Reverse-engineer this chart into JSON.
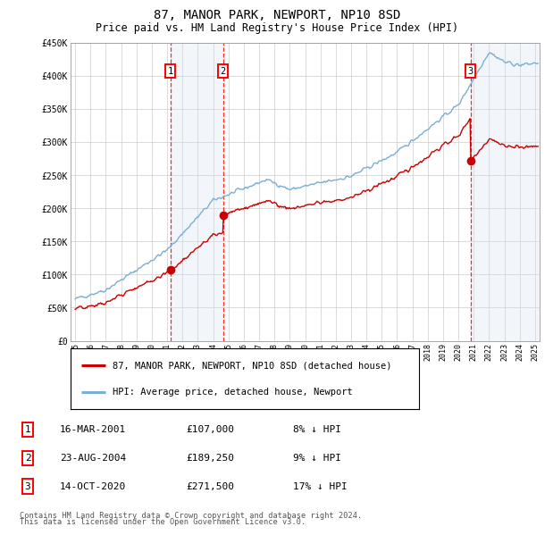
{
  "title": "87, MANOR PARK, NEWPORT, NP10 8SD",
  "subtitle": "Price paid vs. HM Land Registry's House Price Index (HPI)",
  "ylim": [
    0,
    450000
  ],
  "yticks": [
    0,
    50000,
    100000,
    150000,
    200000,
    250000,
    300000,
    350000,
    400000,
    450000
  ],
  "ytick_labels": [
    "£0",
    "£50K",
    "£100K",
    "£150K",
    "£200K",
    "£250K",
    "£300K",
    "£350K",
    "£400K",
    "£450K"
  ],
  "hpi_color": "#7bafd4",
  "price_color": "#cc0000",
  "background_color": "#ffffff",
  "grid_color": "#cccccc",
  "sale_shade_color": "#d6e4f0",
  "transactions": [
    {
      "label": "1",
      "date": "16-MAR-2001",
      "price": 107000,
      "hpi_pct": "8% ↓ HPI",
      "x": 2001.21
    },
    {
      "label": "2",
      "date": "23-AUG-2004",
      "price": 189250,
      "hpi_pct": "9% ↓ HPI",
      "x": 2004.65
    },
    {
      "label": "3",
      "date": "14-OCT-2020",
      "price": 271500,
      "hpi_pct": "17% ↓ HPI",
      "x": 2020.79
    }
  ],
  "legend_entries": [
    "87, MANOR PARK, NEWPORT, NP10 8SD (detached house)",
    "HPI: Average price, detached house, Newport"
  ],
  "footer": "Contains HM Land Registry data © Crown copyright and database right 2024.\nThis data is licensed under the Open Government Licence v3.0.",
  "xlim_left": 1994.7,
  "xlim_right": 2025.3
}
